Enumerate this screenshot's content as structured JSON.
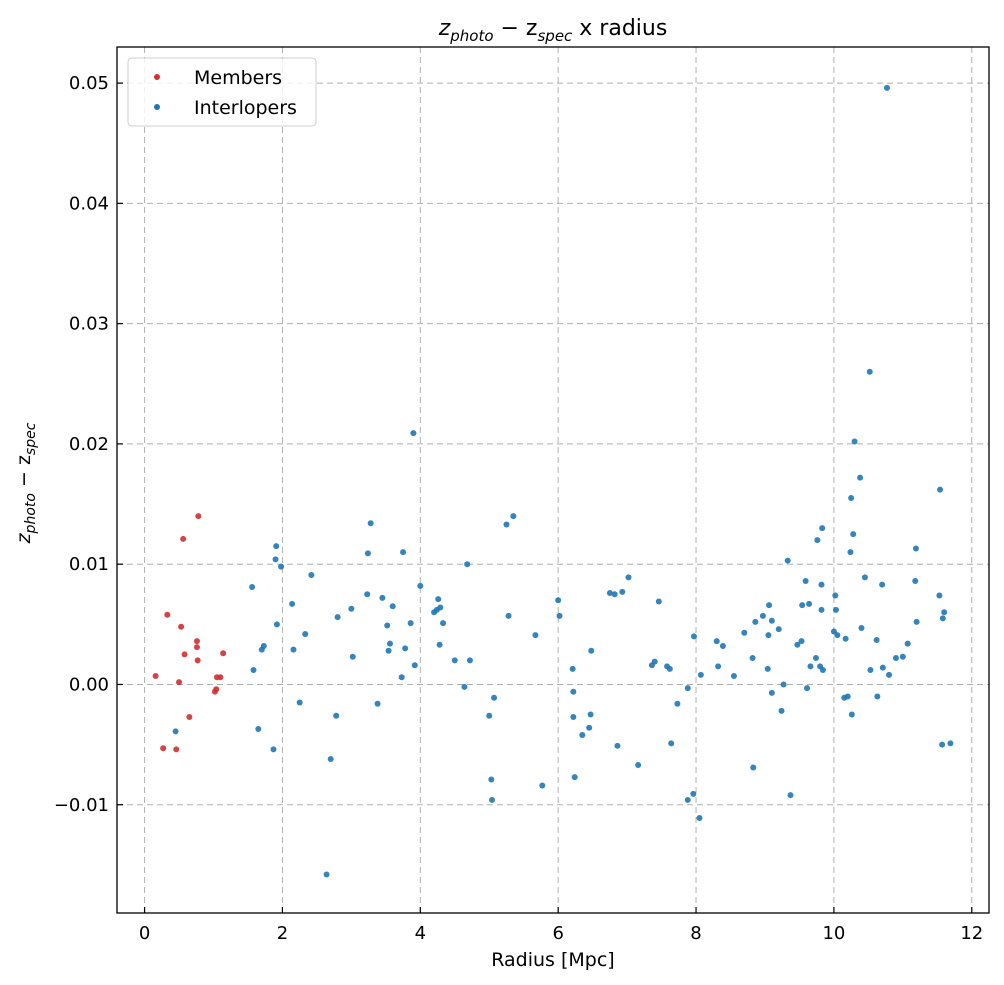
{
  "chart_data": {
    "type": "scatter",
    "title": {
      "main": "z",
      "sub1": "photo",
      "mid": " − z",
      "sub2": "spec",
      "tail": " x radius"
    },
    "xlabel": "Radius [Mpc]",
    "ylabel": {
      "main": "z",
      "sub1": "photo",
      "mid": " − z",
      "sub2": "spec"
    },
    "xlim": [
      -0.4,
      12.25
    ],
    "ylim": [
      -0.019,
      0.053
    ],
    "xticks": [
      0,
      2,
      4,
      6,
      8,
      10,
      12
    ],
    "xtick_labels": [
      "0",
      "2",
      "4",
      "6",
      "8",
      "10",
      "12"
    ],
    "yticks": [
      -0.01,
      0.0,
      0.01,
      0.02,
      0.03,
      0.04,
      0.05
    ],
    "ytick_labels": [
      "−0.01",
      "0.00",
      "0.01",
      "0.02",
      "0.03",
      "0.04",
      "0.05"
    ],
    "grid": true,
    "legend_position": "upper-left",
    "series": [
      {
        "name": "Members",
        "color": "#d03030",
        "points": [
          [
            0.16,
            0.0007
          ],
          [
            0.27,
            -0.0053
          ],
          [
            0.33,
            0.0058
          ],
          [
            0.46,
            -0.0054
          ],
          [
            0.5,
            0.0002
          ],
          [
            0.53,
            0.0048
          ],
          [
            0.56,
            0.0121
          ],
          [
            0.58,
            0.0025
          ],
          [
            0.65,
            -0.0027
          ],
          [
            0.76,
            0.0031
          ],
          [
            0.76,
            0.0036
          ],
          [
            0.77,
            0.002
          ],
          [
            0.78,
            0.014
          ],
          [
            1.02,
            -0.0006
          ],
          [
            1.04,
            -0.0004
          ],
          [
            1.05,
            0.0006
          ],
          [
            1.1,
            0.0006
          ],
          [
            1.14,
            0.0026
          ]
        ]
      },
      {
        "name": "Interlopers",
        "color": "#1f77b4",
        "points": [
          [
            0.45,
            -0.0039
          ],
          [
            1.56,
            0.0081
          ],
          [
            1.58,
            0.0012
          ],
          [
            1.65,
            -0.0037
          ],
          [
            1.7,
            0.0029
          ],
          [
            1.73,
            0.0032
          ],
          [
            1.87,
            -0.0054
          ],
          [
            1.9,
            0.0104
          ],
          [
            1.91,
            0.0115
          ],
          [
            1.92,
            0.005
          ],
          [
            1.98,
            0.0098
          ],
          [
            2.14,
            0.0067
          ],
          [
            2.16,
            0.0029
          ],
          [
            2.25,
            -0.0015
          ],
          [
            2.33,
            0.0042
          ],
          [
            2.42,
            0.0091
          ],
          [
            2.64,
            -0.0158
          ],
          [
            2.7,
            -0.0062
          ],
          [
            2.78,
            -0.0026
          ],
          [
            2.8,
            0.0056
          ],
          [
            3.0,
            0.0063
          ],
          [
            3.02,
            0.0023
          ],
          [
            3.23,
            0.0075
          ],
          [
            3.24,
            0.0109
          ],
          [
            3.28,
            0.0134
          ],
          [
            3.38,
            -0.0016
          ],
          [
            3.45,
            0.0072
          ],
          [
            3.52,
            0.0049
          ],
          [
            3.54,
            0.0028
          ],
          [
            3.56,
            0.0034
          ],
          [
            3.6,
            0.0065
          ],
          [
            3.73,
            0.0006
          ],
          [
            3.75,
            0.011
          ],
          [
            3.78,
            0.003
          ],
          [
            3.86,
            0.0051
          ],
          [
            3.9,
            0.0209
          ],
          [
            3.92,
            0.0016
          ],
          [
            4.0,
            0.0082
          ],
          [
            4.2,
            0.006
          ],
          [
            4.24,
            0.0062
          ],
          [
            4.26,
            0.0071
          ],
          [
            4.28,
            0.0033
          ],
          [
            4.29,
            0.0064
          ],
          [
            4.33,
            0.0051
          ],
          [
            4.5,
            0.002
          ],
          [
            4.64,
            -0.0002
          ],
          [
            4.68,
            0.01
          ],
          [
            4.72,
            0.002
          ],
          [
            5.0,
            -0.0026
          ],
          [
            5.03,
            -0.0079
          ],
          [
            5.04,
            -0.0096
          ],
          [
            5.07,
            -0.0011
          ],
          [
            5.25,
            0.0133
          ],
          [
            5.28,
            0.0057
          ],
          [
            5.35,
            0.014
          ],
          [
            5.67,
            0.0041
          ],
          [
            5.77,
            -0.0084
          ],
          [
            6.0,
            0.007
          ],
          [
            6.02,
            0.0057
          ],
          [
            6.21,
            0.0013
          ],
          [
            6.22,
            -0.0006
          ],
          [
            6.22,
            -0.0027
          ],
          [
            6.24,
            -0.0077
          ],
          [
            6.35,
            -0.0042
          ],
          [
            6.45,
            -0.0036
          ],
          [
            6.47,
            -0.0025
          ],
          [
            6.48,
            0.0028
          ],
          [
            6.75,
            0.0076
          ],
          [
            6.82,
            0.0075
          ],
          [
            6.86,
            -0.0051
          ],
          [
            6.93,
            0.0077
          ],
          [
            7.02,
            0.0089
          ],
          [
            7.16,
            -0.0067
          ],
          [
            7.36,
            0.0016
          ],
          [
            7.4,
            0.0019
          ],
          [
            7.46,
            0.0069
          ],
          [
            7.58,
            0.0015
          ],
          [
            7.62,
            0.0013
          ],
          [
            7.64,
            -0.0049
          ],
          [
            7.73,
            -0.0016
          ],
          [
            7.88,
            -0.0096
          ],
          [
            7.88,
            -0.0003
          ],
          [
            7.96,
            -0.0091
          ],
          [
            7.97,
            0.004
          ],
          [
            8.05,
            -0.0111
          ],
          [
            8.07,
            0.0008
          ],
          [
            8.3,
            0.0036
          ],
          [
            8.32,
            0.0015
          ],
          [
            8.39,
            0.0032
          ],
          [
            8.55,
            0.0007
          ],
          [
            8.7,
            0.0043
          ],
          [
            8.82,
            0.0022
          ],
          [
            8.83,
            -0.0069
          ],
          [
            8.86,
            0.0052
          ],
          [
            8.97,
            0.0057
          ],
          [
            9.04,
            0.0013
          ],
          [
            9.05,
            0.0041
          ],
          [
            9.06,
            0.0066
          ],
          [
            9.1,
            -0.0007
          ],
          [
            9.1,
            0.0053
          ],
          [
            9.2,
            0.0046
          ],
          [
            9.24,
            -0.0022
          ],
          [
            9.27,
            0.0
          ],
          [
            9.33,
            0.0103
          ],
          [
            9.37,
            -0.0092
          ],
          [
            9.47,
            0.0033
          ],
          [
            9.53,
            0.0036
          ],
          [
            9.54,
            0.0066
          ],
          [
            9.59,
            0.0086
          ],
          [
            9.61,
            -0.0003
          ],
          [
            9.64,
            0.0067
          ],
          [
            9.66,
            0.0015
          ],
          [
            9.74,
            0.0022
          ],
          [
            9.76,
            0.012
          ],
          [
            9.8,
            0.0015
          ],
          [
            9.82,
            0.0062
          ],
          [
            9.82,
            0.0083
          ],
          [
            9.83,
            0.013
          ],
          [
            9.84,
            0.0012
          ],
          [
            10.0,
            0.0044
          ],
          [
            10.02,
            0.0074
          ],
          [
            10.03,
            0.0062
          ],
          [
            10.05,
            0.0041
          ],
          [
            10.15,
            -0.0011
          ],
          [
            10.17,
            0.0038
          ],
          [
            10.2,
            -0.001
          ],
          [
            10.24,
            0.011
          ],
          [
            10.25,
            0.0155
          ],
          [
            10.26,
            -0.0025
          ],
          [
            10.28,
            0.0125
          ],
          [
            10.3,
            0.0202
          ],
          [
            10.38,
            0.0172
          ],
          [
            10.4,
            0.0047
          ],
          [
            10.45,
            0.0089
          ],
          [
            10.52,
            0.026
          ],
          [
            10.53,
            0.0012
          ],
          [
            10.62,
            0.0037
          ],
          [
            10.63,
            -0.001
          ],
          [
            10.7,
            0.0083
          ],
          [
            10.71,
            0.0014
          ],
          [
            10.77,
            0.0496
          ],
          [
            10.8,
            0.0008
          ],
          [
            10.9,
            0.0022
          ],
          [
            11.0,
            0.0023
          ],
          [
            11.07,
            0.0034
          ],
          [
            11.18,
            0.0086
          ],
          [
            11.19,
            0.0113
          ],
          [
            11.2,
            0.0052
          ],
          [
            11.53,
            0.0074
          ],
          [
            11.54,
            0.0162
          ],
          [
            11.57,
            -0.005
          ],
          [
            11.58,
            0.0055
          ],
          [
            11.6,
            0.006
          ],
          [
            11.69,
            -0.0049
          ]
        ]
      }
    ]
  }
}
